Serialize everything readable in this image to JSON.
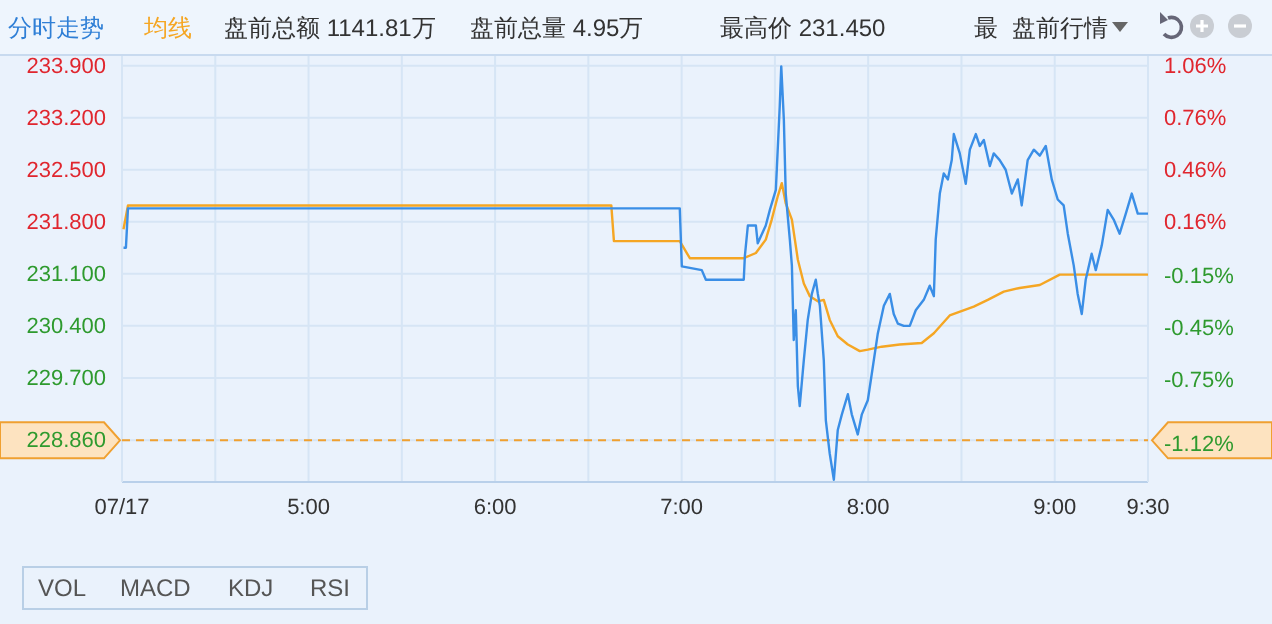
{
  "chart_data": {
    "type": "line",
    "xlim": [
      4,
      9.5
    ],
    "xticks": [
      {
        "value": 4,
        "label": "07/17"
      },
      {
        "value": 4.5,
        "label": null
      },
      {
        "value": 5,
        "label": "5:00"
      },
      {
        "value": 5.5,
        "label": null
      },
      {
        "value": 6,
        "label": "6:00"
      },
      {
        "value": 6.5,
        "label": null
      },
      {
        "value": 7,
        "label": "7:00"
      },
      {
        "value": 7.5,
        "label": null
      },
      {
        "value": 8,
        "label": "8:00"
      },
      {
        "value": 8.5,
        "label": null
      },
      {
        "value": 9,
        "label": "9:00"
      },
      {
        "value": 9.5,
        "label": "9:30"
      }
    ],
    "ylim": [
      228.3,
      234.03
    ],
    "yticks": [
      {
        "value": 233.9,
        "label": "233.900"
      },
      {
        "value": 233.2,
        "label": "233.200"
      },
      {
        "value": 232.5,
        "label": "232.500"
      },
      {
        "value": 231.8,
        "label": "231.800"
      },
      {
        "value": 231.1,
        "label": "231.100"
      },
      {
        "value": 230.4,
        "label": "230.400"
      },
      {
        "value": 229.7,
        "label": "229.700"
      },
      {
        "value": 228.86,
        "label": "228.860"
      }
    ],
    "y2lim": [
      -1.34,
      1.12
    ],
    "y2ticks": [
      {
        "value": 1.06,
        "label": "1.06%"
      },
      {
        "value": 0.76,
        "label": "0.76%"
      },
      {
        "value": 0.46,
        "label": "0.46%"
      },
      {
        "value": 0.16,
        "label": "0.16%"
      },
      {
        "value": -0.15,
        "label": "-0.15%"
      },
      {
        "value": -0.45,
        "label": "-0.45%"
      },
      {
        "value": -0.75,
        "label": "-0.75%"
      },
      {
        "value": -1.12,
        "label": "-1.12%"
      }
    ],
    "grid": true,
    "legend": "top left",
    "ref_lines": [
      {
        "axis": "y",
        "value": 228.86,
        "color": "#f0a030",
        "line_style": "dashed"
      }
    ],
    "series": [
      {
        "color": "#3a8ee6",
        "x": [
          4.008,
          4.021,
          4.032,
          6.99,
          7.001,
          7.108,
          7.13,
          7.333,
          7.339,
          7.355,
          7.398,
          7.408,
          7.451,
          7.473,
          7.505,
          7.526,
          7.534,
          7.548,
          7.558,
          7.58,
          7.591,
          7.601,
          7.612,
          7.623,
          7.633,
          7.655,
          7.676,
          7.698,
          7.719,
          7.73,
          7.741,
          7.762,
          7.773,
          7.794,
          7.816,
          7.837,
          7.859,
          7.891,
          7.912,
          7.944,
          7.966,
          7.998,
          8.019,
          8.051,
          8.084,
          8.116,
          8.137,
          8.159,
          8.191,
          8.223,
          8.255,
          8.298,
          8.33,
          8.352,
          8.362,
          8.384,
          8.405,
          8.427,
          8.448,
          8.459,
          8.491,
          8.523,
          8.545,
          8.577,
          8.598,
          8.62,
          8.652,
          8.673,
          8.705,
          8.737,
          8.77,
          8.802,
          8.823,
          8.855,
          8.888,
          8.92,
          8.952,
          8.984,
          9.016,
          9.048,
          9.07,
          9.102,
          9.123,
          9.145,
          9.166,
          9.198,
          9.22,
          9.252,
          9.284,
          9.316,
          9.348,
          9.381,
          9.413,
          9.445,
          9.5
        ],
        "values": [
          231.45,
          231.45,
          231.98,
          231.98,
          231.2,
          231.15,
          231.02,
          231.02,
          231.34,
          231.75,
          231.75,
          231.51,
          231.75,
          231.96,
          232.23,
          233.36,
          233.89,
          233.17,
          232.18,
          231.56,
          231.21,
          230.21,
          230.61,
          229.59,
          229.32,
          229.94,
          230.48,
          230.83,
          231.02,
          230.83,
          230.67,
          229.94,
          229.13,
          228.68,
          228.33,
          229.0,
          229.21,
          229.48,
          229.21,
          228.94,
          229.21,
          229.4,
          229.75,
          230.29,
          230.67,
          230.83,
          230.56,
          230.43,
          230.4,
          230.4,
          230.61,
          230.75,
          230.94,
          230.8,
          231.56,
          232.18,
          232.45,
          232.37,
          232.63,
          232.98,
          232.72,
          232.31,
          232.77,
          232.98,
          232.82,
          232.9,
          232.55,
          232.72,
          232.63,
          232.5,
          232.18,
          232.37,
          232.02,
          232.63,
          232.77,
          232.69,
          232.82,
          232.37,
          232.1,
          232.02,
          231.64,
          231.21,
          230.83,
          230.56,
          231.02,
          231.37,
          231.15,
          231.48,
          231.96,
          231.83,
          231.64,
          231.91,
          232.18,
          231.91,
          231.91
        ]
      },
      {
        "name": "均线",
        "color": "#f5a623",
        "x": [
          4.008,
          4.032,
          6.623,
          6.637,
          6.99,
          7.044,
          7.333,
          7.398,
          7.451,
          7.483,
          7.516,
          7.537,
          7.558,
          7.591,
          7.623,
          7.655,
          7.687,
          7.73,
          7.762,
          7.794,
          7.837,
          7.891,
          7.955,
          7.998,
          8.073,
          8.169,
          8.287,
          8.352,
          8.437,
          8.566,
          8.641,
          8.727,
          8.812,
          8.92,
          9.027,
          9.188,
          9.5
        ],
        "values": [
          231.7,
          232.02,
          232.02,
          231.54,
          231.54,
          231.31,
          231.31,
          231.38,
          231.56,
          231.83,
          232.15,
          232.32,
          232.05,
          231.83,
          231.29,
          230.97,
          230.8,
          230.73,
          230.75,
          230.48,
          230.26,
          230.15,
          230.06,
          230.08,
          230.12,
          230.15,
          230.17,
          230.3,
          230.54,
          230.66,
          230.75,
          230.86,
          230.91,
          230.95,
          231.09,
          231.09,
          231.09
        ]
      }
    ],
    "annotations": [
      "分时走势",
      "盘前总额 1141.81万",
      "盘前总量 4.95万",
      "最高价 231.450",
      "最",
      "盘前行情",
      "VOL",
      "MACD",
      "KDJ",
      "RSI"
    ]
  }
}
